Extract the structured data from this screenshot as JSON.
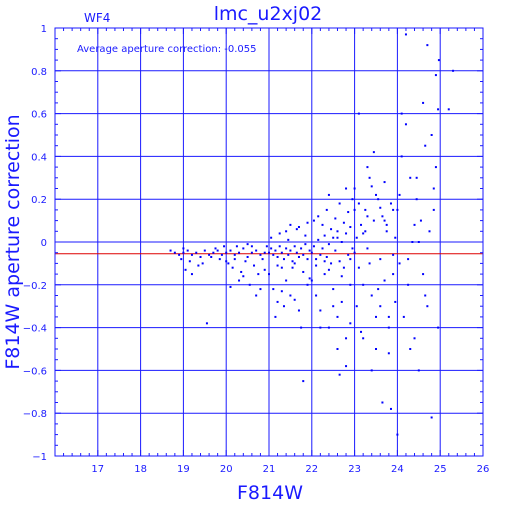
{
  "chart_data": {
    "type": "scatter",
    "title": "lmc_u2xj02",
    "panel_label": "WF4",
    "annotation": "Average aperture correction: -0.055",
    "xlabel": "F814W",
    "ylabel": "F814W aperture correction",
    "xlim": [
      16,
      26
    ],
    "ylim": [
      -1,
      1
    ],
    "x_ticks": [
      17,
      18,
      19,
      20,
      21,
      22,
      23,
      24,
      25,
      26
    ],
    "x_tick_labels": [
      "17",
      "18",
      "19",
      "20",
      "21",
      "22",
      "23",
      "24",
      "25",
      "26"
    ],
    "y_ticks": [
      -1,
      -0.8,
      -0.6,
      -0.4,
      -0.2,
      0,
      0.2,
      0.4,
      0.6,
      0.8,
      1
    ],
    "y_tick_labels": [
      "−1",
      "−0.8",
      "−0.6",
      "−0.4",
      "−0.2",
      "0",
      "0.2",
      "0.4",
      "0.6",
      "0.8",
      "1"
    ],
    "grid": true,
    "reference_line": {
      "y": -0.055,
      "color": "#dd0000"
    },
    "colors": {
      "axes": "#1a1aff",
      "points": "#0000ff",
      "reference": "#dd0000"
    },
    "series": [
      {
        "points": [
          [
            18.7,
            -0.04
          ],
          [
            18.8,
            -0.05
          ],
          [
            18.9,
            -0.06
          ],
          [
            19.0,
            -0.05
          ],
          [
            19.1,
            -0.04
          ],
          [
            19.2,
            -0.06
          ],
          [
            19.3,
            -0.05
          ],
          [
            19.4,
            -0.07
          ],
          [
            19.5,
            -0.04
          ],
          [
            19.6,
            -0.06
          ],
          [
            19.7,
            -0.05
          ],
          [
            19.8,
            -0.04
          ],
          [
            19.9,
            -0.06
          ],
          [
            19.0,
            -0.03
          ],
          [
            18.95,
            -0.08
          ],
          [
            19.15,
            -0.09
          ],
          [
            19.45,
            -0.1
          ],
          [
            19.55,
            -0.38
          ],
          [
            19.2,
            -0.15
          ],
          [
            19.05,
            -0.13
          ],
          [
            19.35,
            -0.11
          ],
          [
            19.65,
            -0.07
          ],
          [
            19.75,
            -0.03
          ],
          [
            19.85,
            -0.08
          ],
          [
            19.95,
            -0.02
          ],
          [
            20.0,
            -0.05
          ],
          [
            20.1,
            -0.04
          ],
          [
            20.2,
            -0.06
          ],
          [
            20.3,
            -0.05
          ],
          [
            20.4,
            -0.03
          ],
          [
            20.5,
            -0.07
          ],
          [
            20.6,
            -0.05
          ],
          [
            20.7,
            -0.04
          ],
          [
            20.8,
            -0.06
          ],
          [
            20.9,
            -0.05
          ],
          [
            20.05,
            -0.1
          ],
          [
            20.15,
            -0.12
          ],
          [
            20.25,
            -0.02
          ],
          [
            20.35,
            -0.14
          ],
          [
            20.45,
            -0.09
          ],
          [
            20.55,
            -0.2
          ],
          [
            20.65,
            -0.11
          ],
          [
            20.75,
            -0.15
          ],
          [
            20.85,
            -0.08
          ],
          [
            20.95,
            -0.02
          ],
          [
            20.1,
            -0.21
          ],
          [
            20.3,
            -0.18
          ],
          [
            20.5,
            -0.01
          ],
          [
            20.7,
            -0.25
          ],
          [
            20.9,
            -0.13
          ],
          [
            20.2,
            -0.08
          ],
          [
            20.6,
            -0.02
          ],
          [
            20.8,
            -0.22
          ],
          [
            20.4,
            -0.16
          ],
          [
            20.0,
            -0.09
          ],
          [
            21.0,
            -0.05
          ],
          [
            21.05,
            -0.03
          ],
          [
            21.1,
            -0.06
          ],
          [
            21.15,
            -0.04
          ],
          [
            21.2,
            -0.07
          ],
          [
            21.25,
            -0.02
          ],
          [
            21.3,
            -0.05
          ],
          [
            21.35,
            -0.08
          ],
          [
            21.4,
            -0.03
          ],
          [
            21.45,
            -0.06
          ],
          [
            21.5,
            -0.04
          ],
          [
            21.55,
            -0.09
          ],
          [
            21.6,
            -0.02
          ],
          [
            21.65,
            -0.05
          ],
          [
            21.7,
            -0.07
          ],
          [
            21.75,
            -0.03
          ],
          [
            21.8,
            -0.06
          ],
          [
            21.85,
            -0.01
          ],
          [
            21.9,
            -0.08
          ],
          [
            21.95,
            -0.04
          ],
          [
            21.0,
            -0.15
          ],
          [
            21.1,
            -0.22
          ],
          [
            21.2,
            -0.28
          ],
          [
            21.3,
            -0.12
          ],
          [
            21.4,
            -0.18
          ],
          [
            21.5,
            -0.25
          ],
          [
            21.6,
            -0.1
          ],
          [
            21.7,
            -0.32
          ],
          [
            21.8,
            -0.14
          ],
          [
            21.9,
            -0.2
          ],
          [
            21.05,
            0.02
          ],
          [
            21.25,
            0.04
          ],
          [
            21.45,
            0.01
          ],
          [
            21.65,
            0.06
          ],
          [
            21.85,
            0.03
          ],
          [
            21.15,
            -0.35
          ],
          [
            21.35,
            -0.3
          ],
          [
            21.55,
            -0.12
          ],
          [
            21.75,
            -0.4
          ],
          [
            21.95,
            -0.17
          ],
          [
            21.5,
            0.08
          ],
          [
            21.7,
            0.07
          ],
          [
            21.3,
            -0.23
          ],
          [
            21.6,
            -0.27
          ],
          [
            21.8,
            -0.65
          ],
          [
            21.2,
            -0.11
          ],
          [
            21.9,
            0.09
          ],
          [
            21.4,
            0.05
          ],
          [
            22.0,
            -0.05
          ],
          [
            22.05,
            -0.02
          ],
          [
            22.1,
            -0.08
          ],
          [
            22.15,
            0.01
          ],
          [
            22.2,
            -0.06
          ],
          [
            22.25,
            -0.03
          ],
          [
            22.3,
            0.03
          ],
          [
            22.35,
            -0.07
          ],
          [
            22.4,
            -0.01
          ],
          [
            22.45,
            -0.1
          ],
          [
            22.5,
            0.02
          ],
          [
            22.55,
            -0.04
          ],
          [
            22.6,
            0.05
          ],
          [
            22.65,
            -0.09
          ],
          [
            22.7,
            0.0
          ],
          [
            22.75,
            -0.12
          ],
          [
            22.8,
            0.04
          ],
          [
            22.85,
            -0.06
          ],
          [
            22.9,
            0.07
          ],
          [
            22.95,
            -0.03
          ],
          [
            22.0,
            -0.18
          ],
          [
            22.1,
            -0.25
          ],
          [
            22.2,
            -0.32
          ],
          [
            22.3,
            -0.15
          ],
          [
            22.4,
            -0.4
          ],
          [
            22.5,
            -0.22
          ],
          [
            22.6,
            -0.35
          ],
          [
            22.7,
            -0.28
          ],
          [
            22.8,
            -0.45
          ],
          [
            22.9,
            -0.2
          ],
          [
            22.05,
            0.1
          ],
          [
            22.15,
            0.12
          ],
          [
            22.25,
            0.08
          ],
          [
            22.35,
            0.15
          ],
          [
            22.45,
            0.06
          ],
          [
            22.55,
            0.11
          ],
          [
            22.65,
            0.18
          ],
          [
            22.75,
            0.09
          ],
          [
            22.85,
            0.14
          ],
          [
            22.95,
            0.2
          ],
          [
            22.2,
            -0.4
          ],
          [
            22.4,
            -0.13
          ],
          [
            22.6,
            -0.5
          ],
          [
            22.8,
            -0.58
          ],
          [
            22.3,
            -0.09
          ],
          [
            22.7,
            -0.16
          ],
          [
            22.9,
            -0.38
          ],
          [
            22.1,
            -0.11
          ],
          [
            22.5,
            -0.3
          ],
          [
            22.65,
            -0.62
          ],
          [
            22.4,
            0.22
          ],
          [
            22.8,
            0.25
          ],
          [
            22.6,
            0.02
          ],
          [
            22.9,
            -0.08
          ],
          [
            23.0,
            -0.05
          ],
          [
            23.05,
            0.02
          ],
          [
            23.1,
            -0.12
          ],
          [
            23.15,
            0.08
          ],
          [
            23.2,
            -0.2
          ],
          [
            23.25,
            0.15
          ],
          [
            23.3,
            -0.03
          ],
          [
            23.35,
            0.3
          ],
          [
            23.4,
            -0.25
          ],
          [
            23.45,
            0.1
          ],
          [
            23.5,
            -0.35
          ],
          [
            23.55,
            0.2
          ],
          [
            23.6,
            -0.08
          ],
          [
            23.65,
            0.12
          ],
          [
            23.7,
            -0.18
          ],
          [
            23.75,
            0.05
          ],
          [
            23.8,
            -0.4
          ],
          [
            23.85,
            0.18
          ],
          [
            23.9,
            -0.15
          ],
          [
            23.95,
            0.02
          ],
          [
            23.0,
            0.25
          ],
          [
            23.1,
            0.18
          ],
          [
            23.2,
            -0.45
          ],
          [
            23.3,
            0.35
          ],
          [
            23.4,
            -0.6
          ],
          [
            23.5,
            0.22
          ],
          [
            23.6,
            -0.3
          ],
          [
            23.7,
            0.28
          ],
          [
            23.8,
            -0.52
          ],
          [
            23.9,
            0.15
          ],
          [
            23.05,
            -0.3
          ],
          [
            23.15,
            -0.42
          ],
          [
            23.25,
            0.05
          ],
          [
            23.35,
            -0.1
          ],
          [
            23.45,
            0.42
          ],
          [
            23.55,
            -0.22
          ],
          [
            23.65,
            -0.75
          ],
          [
            23.75,
            0.08
          ],
          [
            23.85,
            -0.78
          ],
          [
            23.95,
            -0.28
          ],
          [
            23.1,
            0.6
          ],
          [
            23.3,
            0.12
          ],
          [
            23.5,
            -0.5
          ],
          [
            23.7,
            0.1
          ],
          [
            23.9,
            -0.06
          ],
          [
            23.2,
            0.04
          ],
          [
            23.6,
            0.16
          ],
          [
            23.8,
            -0.35
          ],
          [
            23.4,
            0.26
          ],
          [
            23.0,
            0.15
          ],
          [
            24.0,
            0.15
          ],
          [
            24.05,
            -0.1
          ],
          [
            24.1,
            0.4
          ],
          [
            24.15,
            -0.35
          ],
          [
            24.2,
            0.55
          ],
          [
            24.25,
            -0.2
          ],
          [
            24.3,
            0.3
          ],
          [
            24.35,
            0.0
          ],
          [
            24.4,
            -0.45
          ],
          [
            24.45,
            0.2
          ],
          [
            24.5,
            -0.6
          ],
          [
            24.55,
            0.1
          ],
          [
            24.6,
            -0.15
          ],
          [
            24.65,
            0.45
          ],
          [
            24.7,
            -0.3
          ],
          [
            24.75,
            0.05
          ],
          [
            24.8,
            -0.82
          ],
          [
            24.85,
            0.25
          ],
          [
            24.9,
            0.35
          ],
          [
            24.95,
            -0.4
          ],
          [
            24.0,
            -0.9
          ],
          [
            24.1,
            0.6
          ],
          [
            24.2,
            0.97
          ],
          [
            24.3,
            -0.5
          ],
          [
            24.4,
            0.08
          ],
          [
            24.6,
            0.65
          ],
          [
            24.8,
            0.5
          ],
          [
            24.9,
            0.78
          ],
          [
            24.95,
            0.62
          ],
          [
            24.7,
            0.92
          ],
          [
            24.05,
            0.22
          ],
          [
            24.25,
            -0.08
          ],
          [
            24.45,
            0.3
          ],
          [
            24.65,
            -0.25
          ],
          [
            24.85,
            0.15
          ],
          [
            25.3,
            0.8
          ],
          [
            25.2,
            0.62
          ],
          [
            24.97,
            0.85
          ],
          [
            24.5,
            0.0
          ]
        ]
      }
    ]
  }
}
